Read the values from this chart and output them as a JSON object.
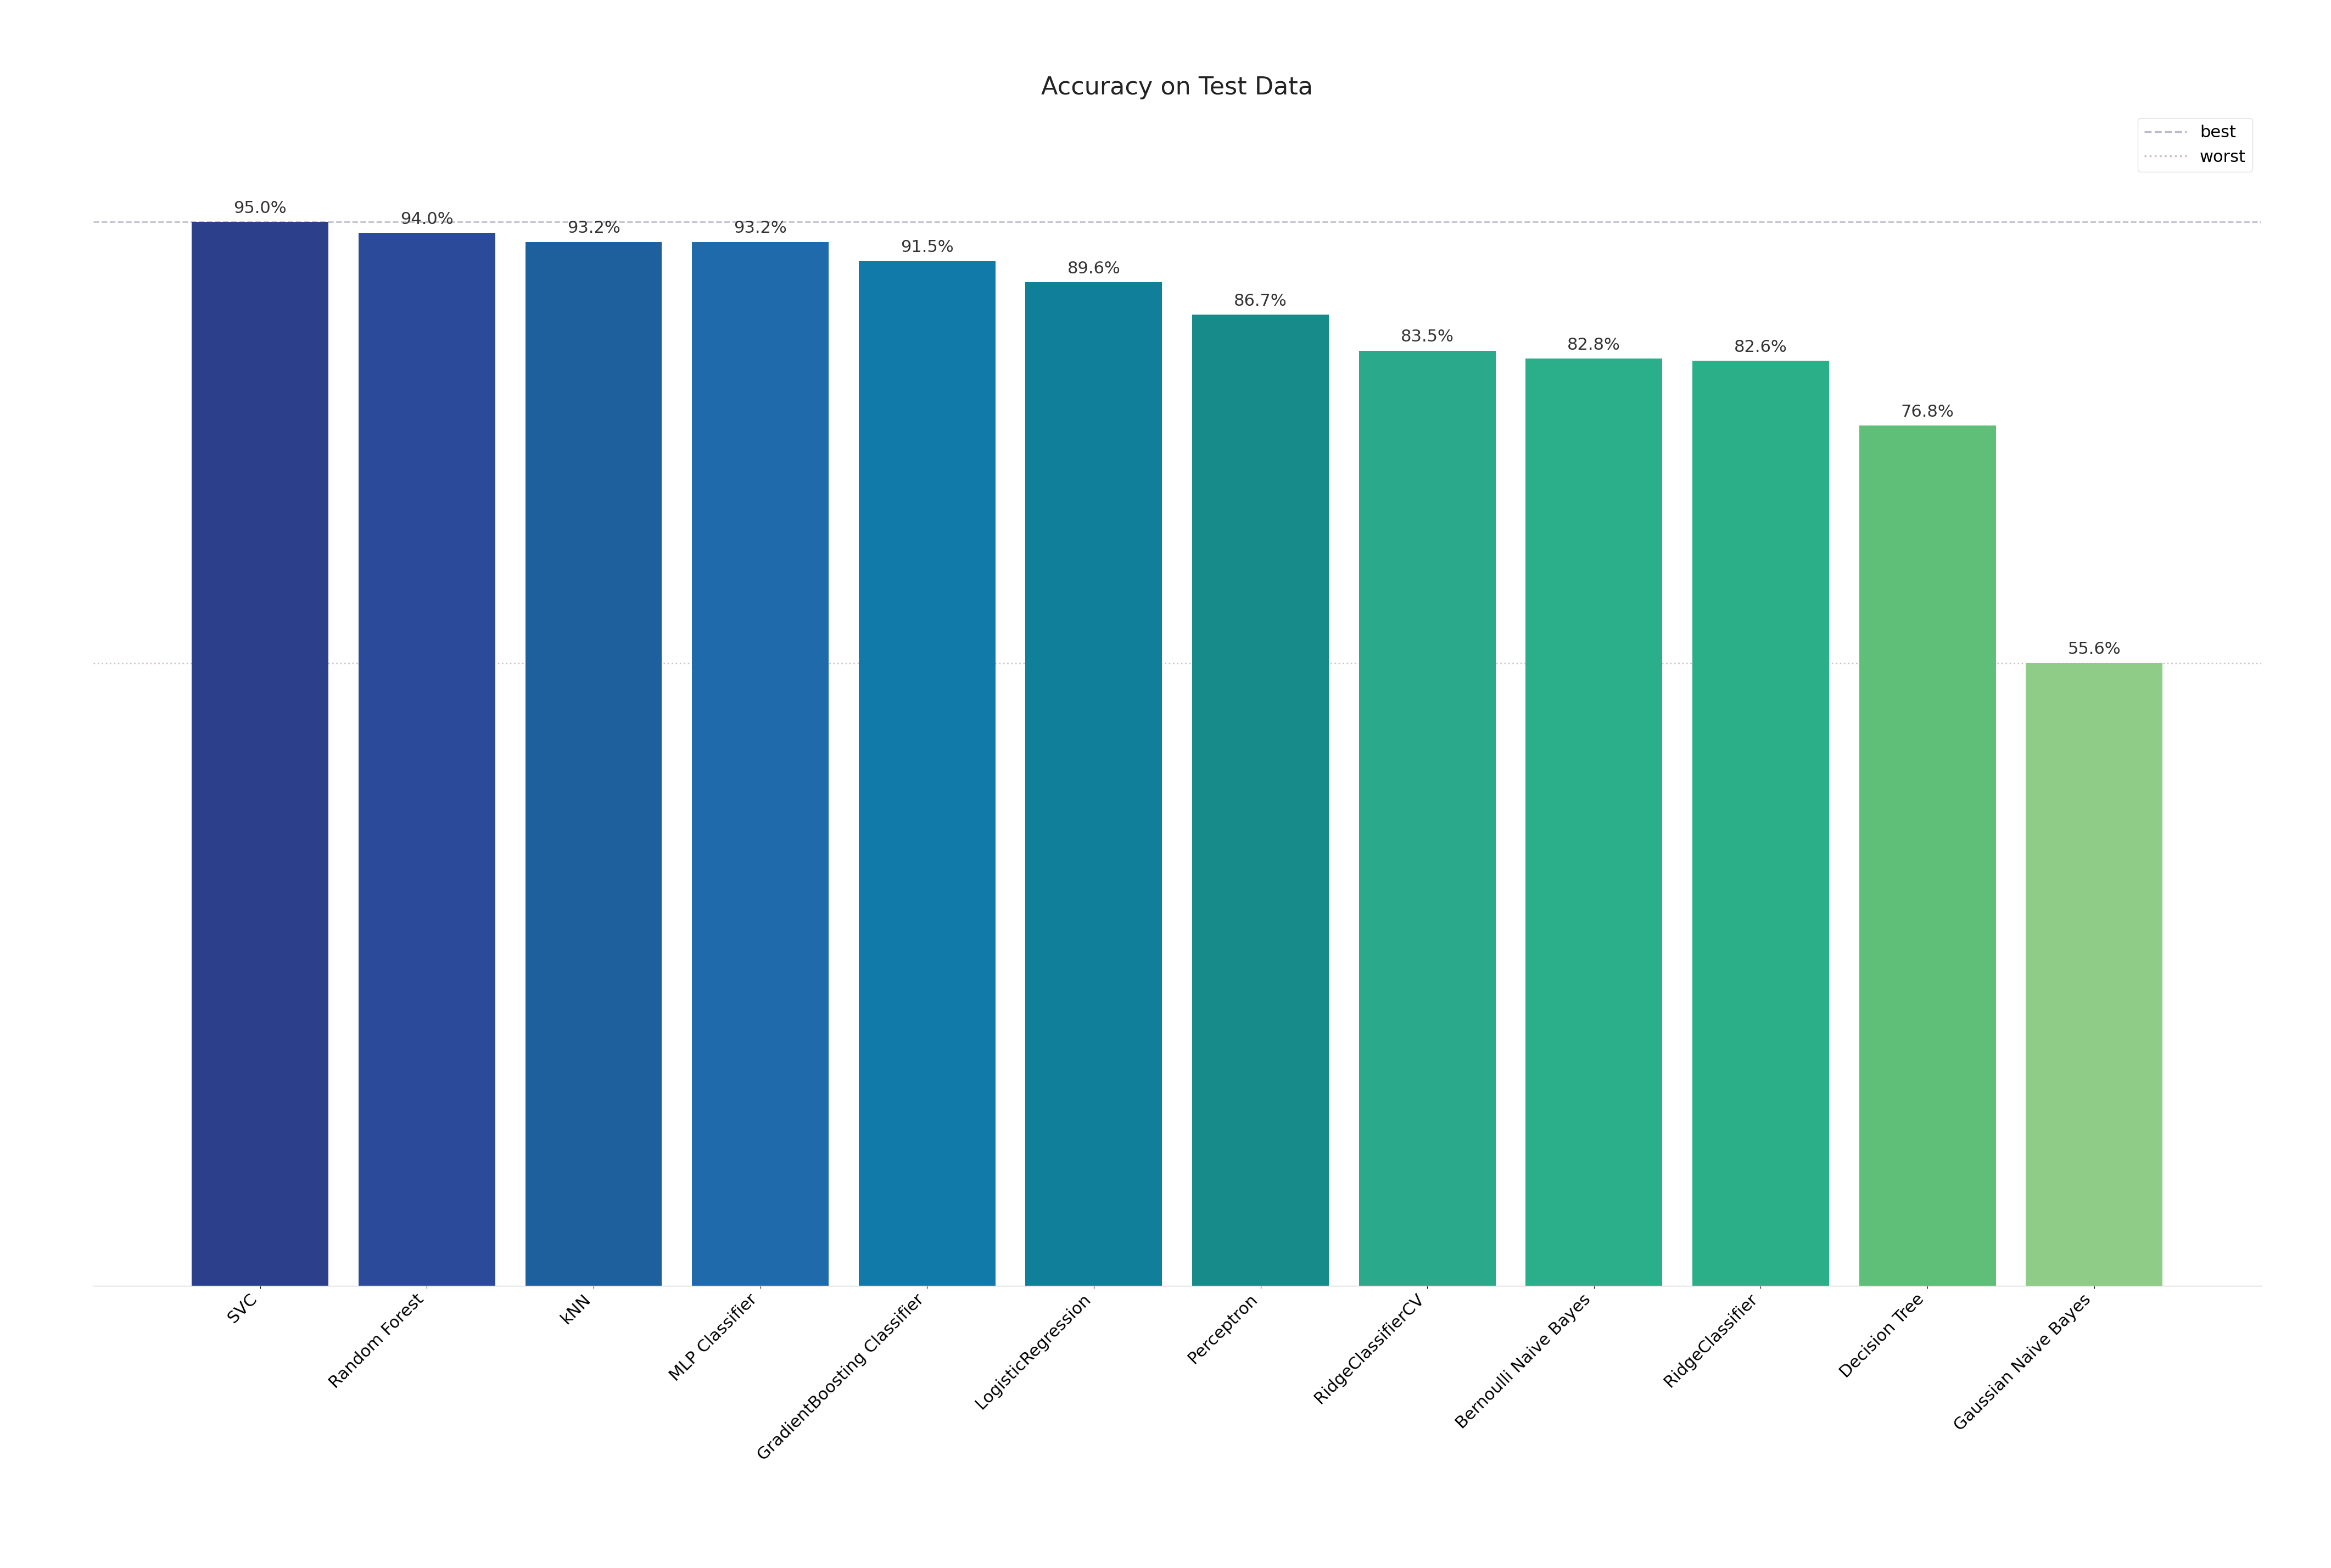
{
  "title": "Accuracy on Test Data",
  "categories": [
    "SVC",
    "Random Forest",
    "kNN",
    "MLP Classifier",
    "GradientBoosting Classifier",
    "LogisticRegression",
    "Perceptron",
    "RidgeClassifierCV",
    "Bernoulli Naive Bayes",
    "RidgeClassifier",
    "Decision Tree",
    "Gaussian Naive Bayes"
  ],
  "values": [
    95.0,
    94.0,
    93.2,
    93.2,
    91.5,
    89.6,
    86.7,
    83.5,
    82.8,
    82.6,
    76.8,
    55.6
  ],
  "bar_colors": [
    "#2b3f8a",
    "#2b4a9a",
    "#1e5f9e",
    "#1e6aab",
    "#127aa8",
    "#0f7f9a",
    "#178a8a",
    "#2aaa8a",
    "#2aaf8a",
    "#2aaf88",
    "#5fbe78",
    "#8fcc88"
  ],
  "best_value": 95.0,
  "worst_value": 55.6,
  "best_label": "best",
  "worst_label": "worst",
  "best_line_color": "#bbbbcc",
  "worst_line_color": "#ccbbbb",
  "title_fontsize": 32,
  "tick_fontsize": 22,
  "value_fontsize": 22,
  "legend_fontsize": 22,
  "background_color": "#ffffff",
  "bar_width": 0.82,
  "ylim": [
    0,
    105
  ]
}
